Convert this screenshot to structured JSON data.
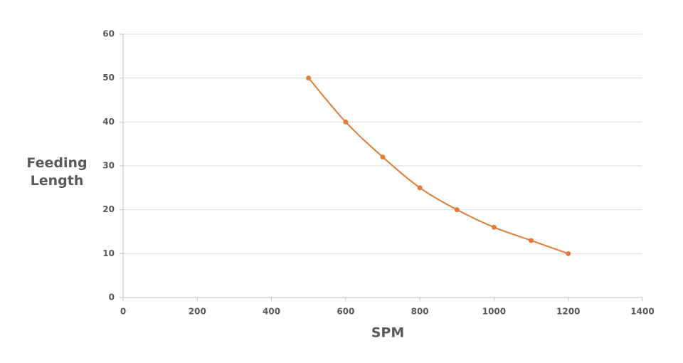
{
  "chart_data": {
    "type": "line",
    "x_label": "SPM",
    "y_label": "Feeding Length",
    "x": [
      500,
      600,
      700,
      800,
      900,
      1000,
      1100,
      1200
    ],
    "series": [
      {
        "color": "#e07b39",
        "values": [
          50,
          40,
          32,
          25,
          20,
          16,
          13,
          10
        ]
      }
    ],
    "xlim": [
      0,
      1400
    ],
    "xticks": [
      0,
      200,
      400,
      600,
      800,
      1000,
      1200,
      1400
    ],
    "ylim": [
      0,
      60
    ],
    "yticks": [
      0,
      10,
      20,
      30,
      40,
      50,
      60
    ],
    "grid": true,
    "smooth": true,
    "markers": true
  }
}
